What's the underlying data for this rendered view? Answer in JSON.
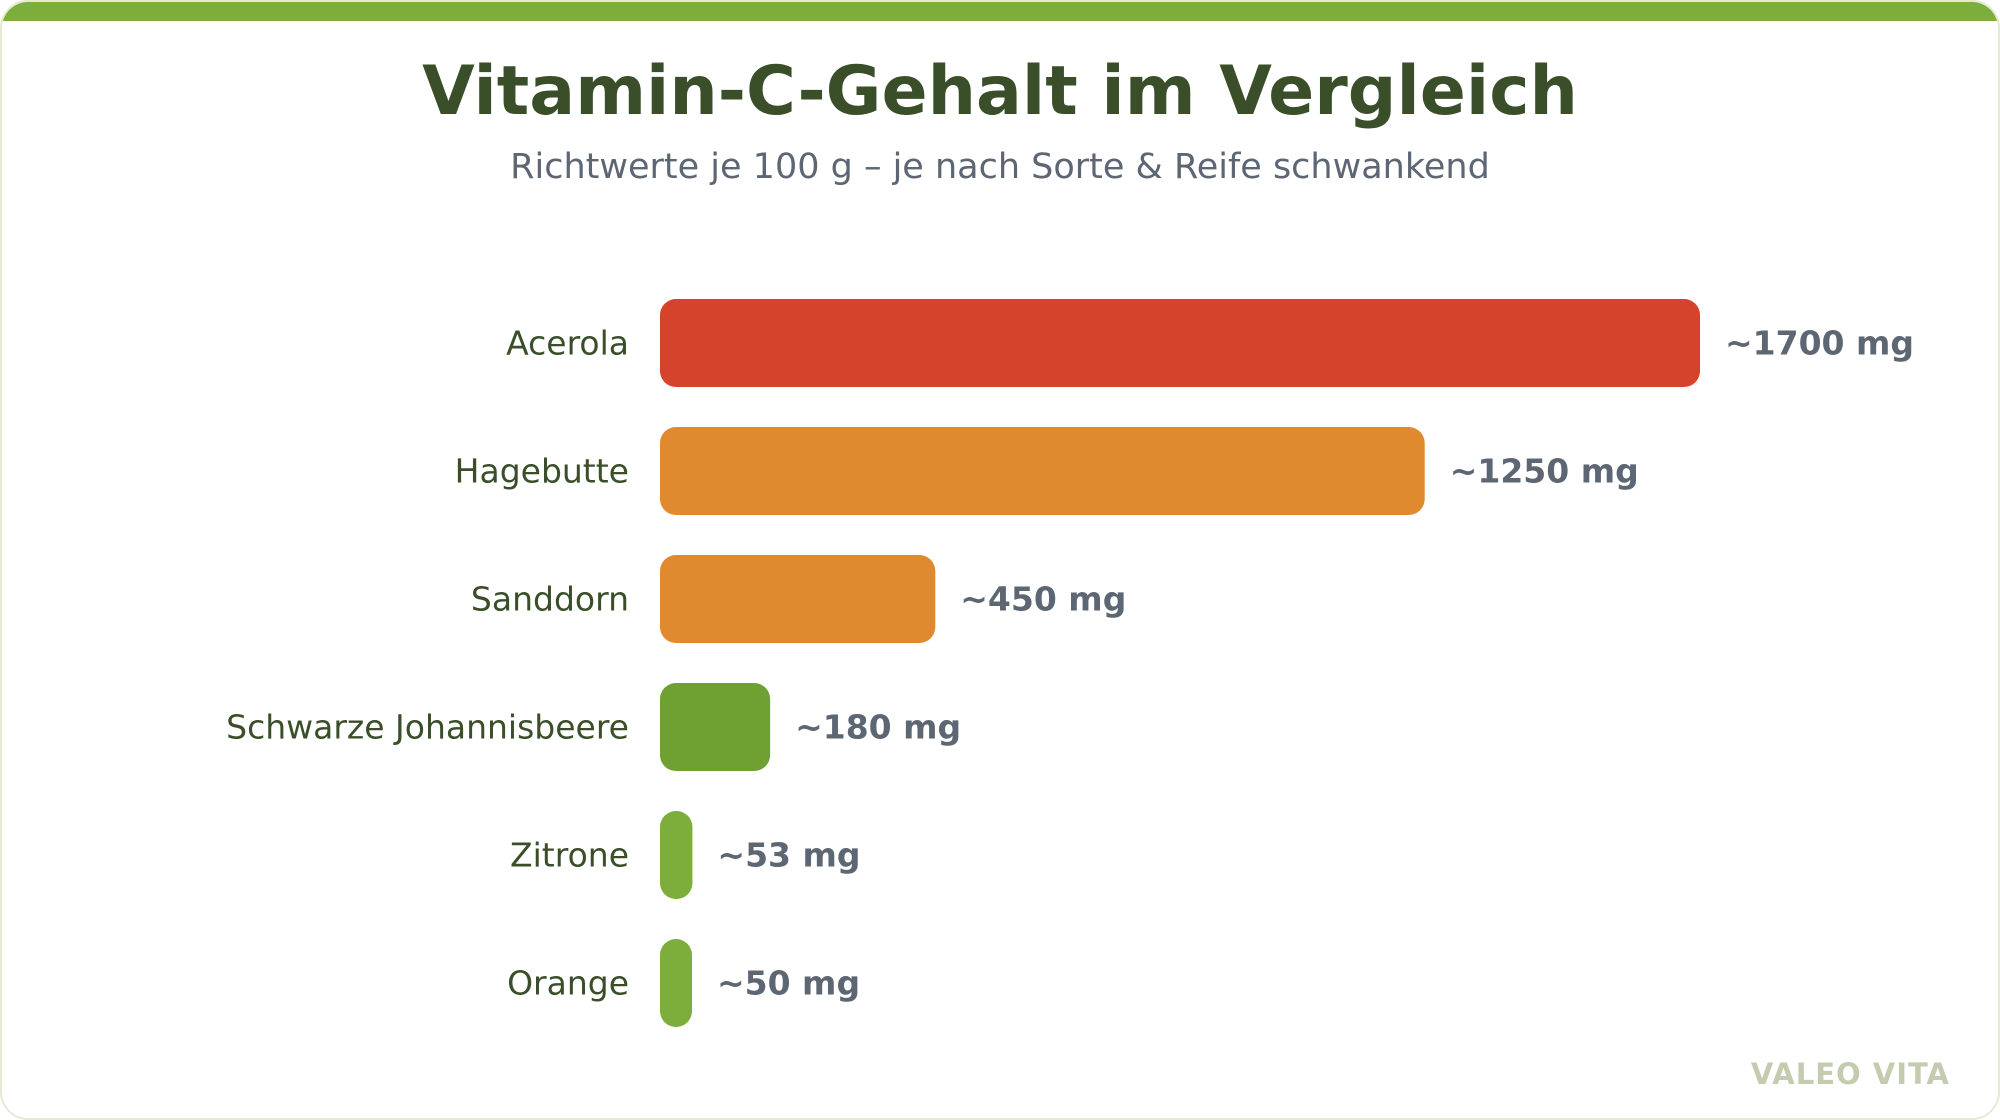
{
  "chart_data": {
    "type": "bar",
    "orientation": "horizontal",
    "title": "Vitamin-C-Gehalt im Vergleich",
    "subtitle": "Richtwerte je 100 g – je nach Sorte & Reife schwankend",
    "categories": [
      "Acerola",
      "Hagebutte",
      "Sanddorn",
      "Schwarze Johannisbeere",
      "Zitrone",
      "Orange"
    ],
    "values": [
      1700,
      1250,
      450,
      180,
      53,
      50
    ],
    "value_labels": [
      "~1700 mg",
      "~1250 mg",
      "~450 mg",
      "~180 mg",
      "~53 mg",
      "~50 mg"
    ],
    "colors": [
      "#d6432c",
      "#e08a30",
      "#e08a30",
      "#6fa032",
      "#7dad3a",
      "#7dad3a"
    ],
    "xlim": [
      0,
      1700
    ],
    "grid": false,
    "legend": "none"
  },
  "brand": "VALEO VITA",
  "colors": {
    "accent": "#7dad3a",
    "title": "#3a4e2a",
    "muted": "#5d6673",
    "brand": "#c3ccaf"
  }
}
